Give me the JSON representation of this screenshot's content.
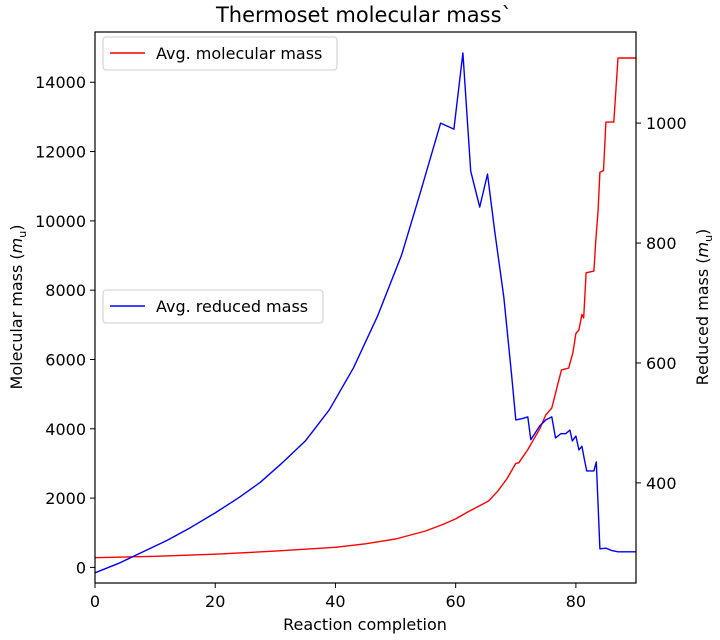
{
  "chart_data": {
    "type": "line",
    "title": "Thermoset molecular mass`",
    "xlabel": "Reaction completion",
    "xlim": [
      0,
      90
    ],
    "x_ticks": [
      0,
      20,
      40,
      60,
      80
    ],
    "grid": false,
    "left_axis": {
      "label_prefix": "Molecular mass (",
      "label_unit_main": "m",
      "label_unit_sub": "u",
      "label_suffix": ")",
      "ylim": [
        -450,
        15450
      ],
      "ticks": [
        0,
        2000,
        4000,
        6000,
        8000,
        10000,
        12000,
        14000
      ]
    },
    "right_axis": {
      "label_prefix": "Reduced mass (",
      "label_unit_main": "m",
      "label_unit_sub": "u",
      "label_suffix": ")",
      "ylim": [
        233,
        1152
      ],
      "ticks": [
        400,
        600,
        800,
        1000
      ]
    },
    "series": [
      {
        "name": "Avg. molecular mass",
        "axis": "left",
        "color": "#ff0000",
        "legend_loc": "upper left",
        "points": [
          [
            0,
            280
          ],
          [
            10,
            320
          ],
          [
            20,
            380
          ],
          [
            30,
            470
          ],
          [
            40,
            580
          ],
          [
            45,
            680
          ],
          [
            50,
            820
          ],
          [
            55,
            1050
          ],
          [
            58,
            1250
          ],
          [
            60,
            1400
          ],
          [
            62,
            1600
          ],
          [
            64,
            1780
          ],
          [
            65.5,
            1920
          ],
          [
            67,
            2200
          ],
          [
            68.5,
            2550
          ],
          [
            70,
            3000
          ],
          [
            70.5,
            3020
          ],
          [
            72,
            3400
          ],
          [
            73,
            3700
          ],
          [
            74,
            4000
          ],
          [
            75,
            4400
          ],
          [
            76,
            4600
          ],
          [
            77,
            5300
          ],
          [
            77.6,
            5700
          ],
          [
            78.8,
            5750
          ],
          [
            79.5,
            6200
          ],
          [
            80,
            6750
          ],
          [
            80.5,
            6850
          ],
          [
            81,
            7300
          ],
          [
            81.3,
            7200
          ],
          [
            81.7,
            8500
          ],
          [
            83,
            8550
          ],
          [
            83.3,
            9400
          ],
          [
            83.7,
            10300
          ],
          [
            84,
            11400
          ],
          [
            84.6,
            11450
          ],
          [
            85,
            12850
          ],
          [
            86.3,
            12850
          ],
          [
            87,
            14700
          ],
          [
            90,
            14700
          ]
        ]
      },
      {
        "name": "Avg. reduced mass",
        "axis": "right",
        "color": "#0000ff",
        "legend_loc": "center left",
        "points": [
          [
            0,
            250
          ],
          [
            4,
            266
          ],
          [
            8,
            285
          ],
          [
            12,
            304
          ],
          [
            16,
            326
          ],
          [
            20,
            350
          ],
          [
            24,
            376
          ],
          [
            27.5,
            401
          ],
          [
            31,
            432
          ],
          [
            35,
            470
          ],
          [
            39,
            522
          ],
          [
            43,
            592
          ],
          [
            47,
            678
          ],
          [
            51,
            780
          ],
          [
            54,
            880
          ],
          [
            57.5,
            1000
          ],
          [
            59.7,
            990
          ],
          [
            61.2,
            1117
          ],
          [
            62.5,
            920
          ],
          [
            64,
            860
          ],
          [
            65.3,
            915
          ],
          [
            66.5,
            820
          ],
          [
            68,
            710
          ],
          [
            69.3,
            580
          ],
          [
            70,
            505
          ],
          [
            71,
            507
          ],
          [
            72,
            510
          ],
          [
            72.5,
            472
          ],
          [
            74,
            495
          ],
          [
            75,
            505
          ],
          [
            76,
            510
          ],
          [
            76.6,
            475
          ],
          [
            77.5,
            482
          ],
          [
            78.3,
            482
          ],
          [
            79,
            488
          ],
          [
            79.4,
            470
          ],
          [
            80,
            478
          ],
          [
            80.5,
            455
          ],
          [
            81,
            461
          ],
          [
            81.3,
            445
          ],
          [
            81.8,
            420
          ],
          [
            83,
            420
          ],
          [
            83.4,
            435
          ],
          [
            84,
            290
          ],
          [
            85,
            291
          ],
          [
            86,
            287
          ],
          [
            87,
            285
          ],
          [
            90,
            285
          ]
        ]
      }
    ]
  }
}
